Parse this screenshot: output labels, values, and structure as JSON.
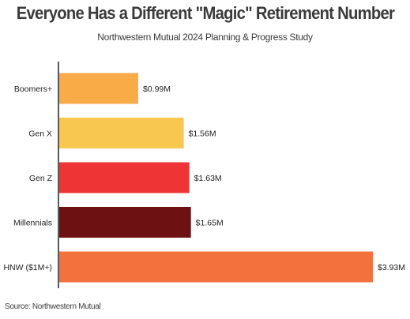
{
  "header": {
    "title": "Everyone Has a Different \"Magic\" Retirement Number",
    "subtitle": "Northwestern Mutual 2024 Planning & Progress Study"
  },
  "footer": {
    "source": "Source: Northwestern Mutual"
  },
  "chart_data": {
    "type": "bar",
    "orientation": "horizontal",
    "title": "Everyone Has a Different \"Magic\" Retirement Number",
    "subtitle": "Northwestern Mutual 2024 Planning & Progress Study",
    "categories": [
      "Boomers+",
      "Gen X",
      "Gen Z",
      "Millennials",
      "HNW ($1M+)"
    ],
    "values": [
      0.99,
      1.56,
      1.63,
      1.65,
      3.93
    ],
    "data_labels": [
      "$0.99M",
      "$1.56M",
      "$1.63M",
      "$1.65M",
      "$3.93M"
    ],
    "unit": "$M",
    "colors": [
      "#f8ab46",
      "#f7c74f",
      "#ee3434",
      "#6e1112",
      "#f3713c"
    ],
    "xlim": [
      0,
      3.93
    ],
    "grid": false,
    "legend": "none"
  }
}
